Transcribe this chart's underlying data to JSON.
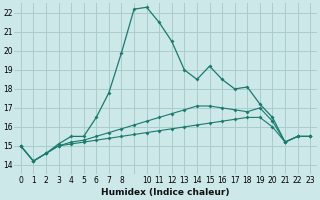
{
  "xlabel": "Humidex (Indice chaleur)",
  "background_color": "#cce8e8",
  "grid_color": "#aacccc",
  "line_color": "#1a7a6e",
  "ylim": [
    13.5,
    22.5
  ],
  "xlim": [
    -0.5,
    23.5
  ],
  "yticks": [
    14,
    15,
    16,
    17,
    18,
    19,
    20,
    21,
    22
  ],
  "xtick_labels": [
    "0",
    "1",
    "2",
    "3",
    "4",
    "5",
    "6",
    "7",
    "8",
    "",
    "10",
    "11",
    "12",
    "13",
    "14",
    "15",
    "16",
    "17",
    "18",
    "19",
    "20",
    "21",
    "22",
    "23"
  ],
  "series1_x": [
    0,
    1,
    2,
    3,
    4,
    5,
    6,
    7,
    8,
    9,
    10,
    11,
    12,
    13,
    14,
    15,
    16,
    17,
    18,
    19,
    20,
    21,
    22,
    23
  ],
  "series1_y": [
    15.0,
    14.2,
    14.6,
    15.1,
    15.5,
    15.5,
    16.5,
    17.8,
    19.9,
    22.2,
    22.3,
    21.5,
    20.5,
    19.0,
    18.5,
    19.2,
    18.5,
    18.0,
    18.1,
    17.2,
    16.5,
    15.2,
    15.5,
    15.5
  ],
  "series2_x": [
    0,
    1,
    2,
    3,
    4,
    5,
    6,
    7,
    8,
    9,
    10,
    11,
    12,
    13,
    14,
    15,
    16,
    17,
    18,
    19,
    20,
    21,
    22,
    23
  ],
  "series2_y": [
    15.0,
    14.2,
    14.6,
    15.0,
    15.2,
    15.3,
    15.5,
    15.7,
    15.9,
    16.1,
    16.3,
    16.5,
    16.7,
    16.9,
    17.1,
    17.1,
    17.0,
    16.9,
    16.8,
    17.0,
    16.3,
    15.2,
    15.5,
    15.5
  ],
  "series3_x": [
    0,
    1,
    2,
    3,
    4,
    5,
    6,
    7,
    8,
    9,
    10,
    11,
    12,
    13,
    14,
    15,
    16,
    17,
    18,
    19,
    20,
    21,
    22,
    23
  ],
  "series3_y": [
    15.0,
    14.2,
    14.6,
    15.0,
    15.1,
    15.2,
    15.3,
    15.4,
    15.5,
    15.6,
    15.7,
    15.8,
    15.9,
    16.0,
    16.1,
    16.2,
    16.3,
    16.4,
    16.5,
    16.5,
    16.0,
    15.2,
    15.5,
    15.5
  ],
  "xlabel_fontsize": 6.5,
  "tick_fontsize": 5.5
}
